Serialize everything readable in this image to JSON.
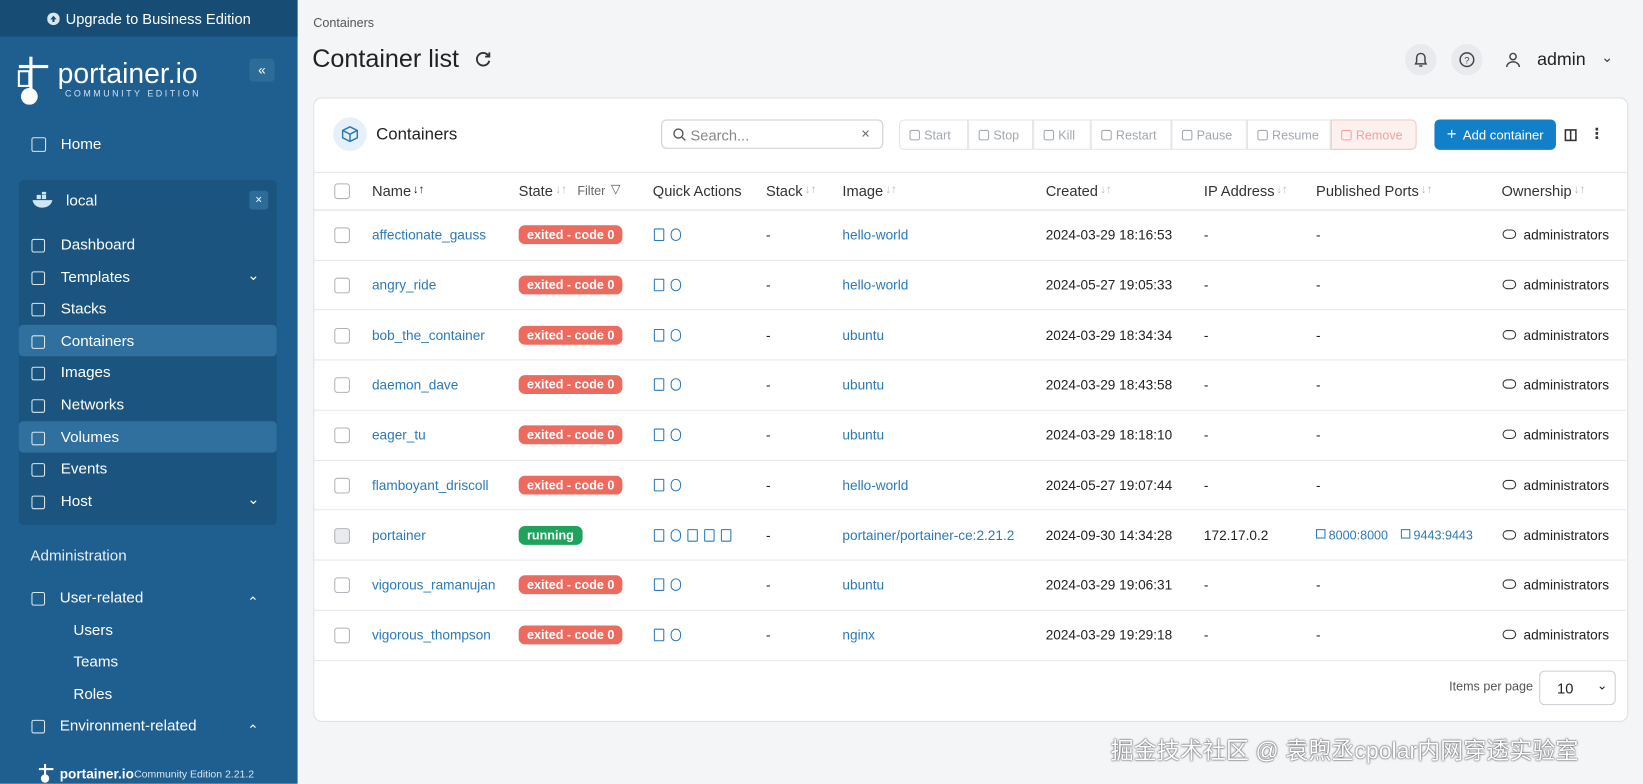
{
  "banner": "Upgrade to Business Edition",
  "sidebar": {
    "logo": "portainer.io",
    "logo_sub": "COMMUNITY EDITION",
    "home": "Home",
    "environment": "local",
    "env_items": [
      "Dashboard",
      "Templates",
      "Stacks",
      "Containers",
      "Images",
      "Networks",
      "Volumes",
      "Events",
      "Host"
    ],
    "admin_title": "Administration",
    "admin_items": [
      "User-related",
      "Users",
      "Teams",
      "Roles",
      "Environment-related"
    ],
    "footer_logo": "portainer.io",
    "footer_version": "Community Edition 2.21.2"
  },
  "breadcrumb": "Containers",
  "page_title": "Container list",
  "user": "admin",
  "panel": {
    "title": "Containers",
    "search_placeholder": "Search...",
    "actions": [
      "Start",
      "Stop",
      "Kill",
      "Restart",
      "Pause",
      "Resume",
      "Remove"
    ],
    "add_button": "Add container",
    "columns": [
      "Name",
      "State",
      "Quick Actions",
      "Stack",
      "Image",
      "Created",
      "IP Address",
      "Published Ports",
      "Ownership"
    ],
    "filter": "Filter",
    "rows": [
      {
        "name": "affectionate_gauss",
        "state": "exited - code 0",
        "stack": "-",
        "image": "hello-world",
        "created": "2024-03-29 18:16:53",
        "ip": "-",
        "ports": [
          "-"
        ],
        "ownership": "administrators"
      },
      {
        "name": "angry_ride",
        "state": "exited - code 0",
        "stack": "-",
        "image": "hello-world",
        "created": "2024-05-27 19:05:33",
        "ip": "-",
        "ports": [
          "-"
        ],
        "ownership": "administrators"
      },
      {
        "name": "bob_the_container",
        "state": "exited - code 0",
        "stack": "-",
        "image": "ubuntu",
        "created": "2024-03-29 18:34:34",
        "ip": "-",
        "ports": [
          "-"
        ],
        "ownership": "administrators"
      },
      {
        "name": "daemon_dave",
        "state": "exited - code 0",
        "stack": "-",
        "image": "ubuntu",
        "created": "2024-03-29 18:43:58",
        "ip": "-",
        "ports": [
          "-"
        ],
        "ownership": "administrators"
      },
      {
        "name": "eager_tu",
        "state": "exited - code 0",
        "stack": "-",
        "image": "ubuntu",
        "created": "2024-03-29 18:18:10",
        "ip": "-",
        "ports": [
          "-"
        ],
        "ownership": "administrators"
      },
      {
        "name": "flamboyant_driscoll",
        "state": "exited - code 0",
        "stack": "-",
        "image": "hello-world",
        "created": "2024-05-27 19:07:44",
        "ip": "-",
        "ports": [
          "-"
        ],
        "ownership": "administrators"
      },
      {
        "name": "portainer",
        "state": "running",
        "stack": "-",
        "image": "portainer/portainer-ce:2.21.2",
        "created": "2024-09-30 14:34:28",
        "ip": "172.17.0.2",
        "ports": [
          "8000:8000",
          "9443:9443"
        ],
        "ownership": "administrators"
      },
      {
        "name": "vigorous_ramanujan",
        "state": "exited - code 0",
        "stack": "-",
        "image": "ubuntu",
        "created": "2024-03-29 19:06:31",
        "ip": "-",
        "ports": [
          "-"
        ],
        "ownership": "administrators"
      },
      {
        "name": "vigorous_thompson",
        "state": "exited - code 0",
        "stack": "-",
        "image": "nginx",
        "created": "2024-03-29 19:29:18",
        "ip": "-",
        "ports": [
          "-"
        ],
        "ownership": "administrators"
      }
    ],
    "items_per_page_label": "Items per page",
    "items_per_page": 10
  },
  "watermark": "掘金技术社区 @ 袁煦丞cpolar内网穿透实验室"
}
